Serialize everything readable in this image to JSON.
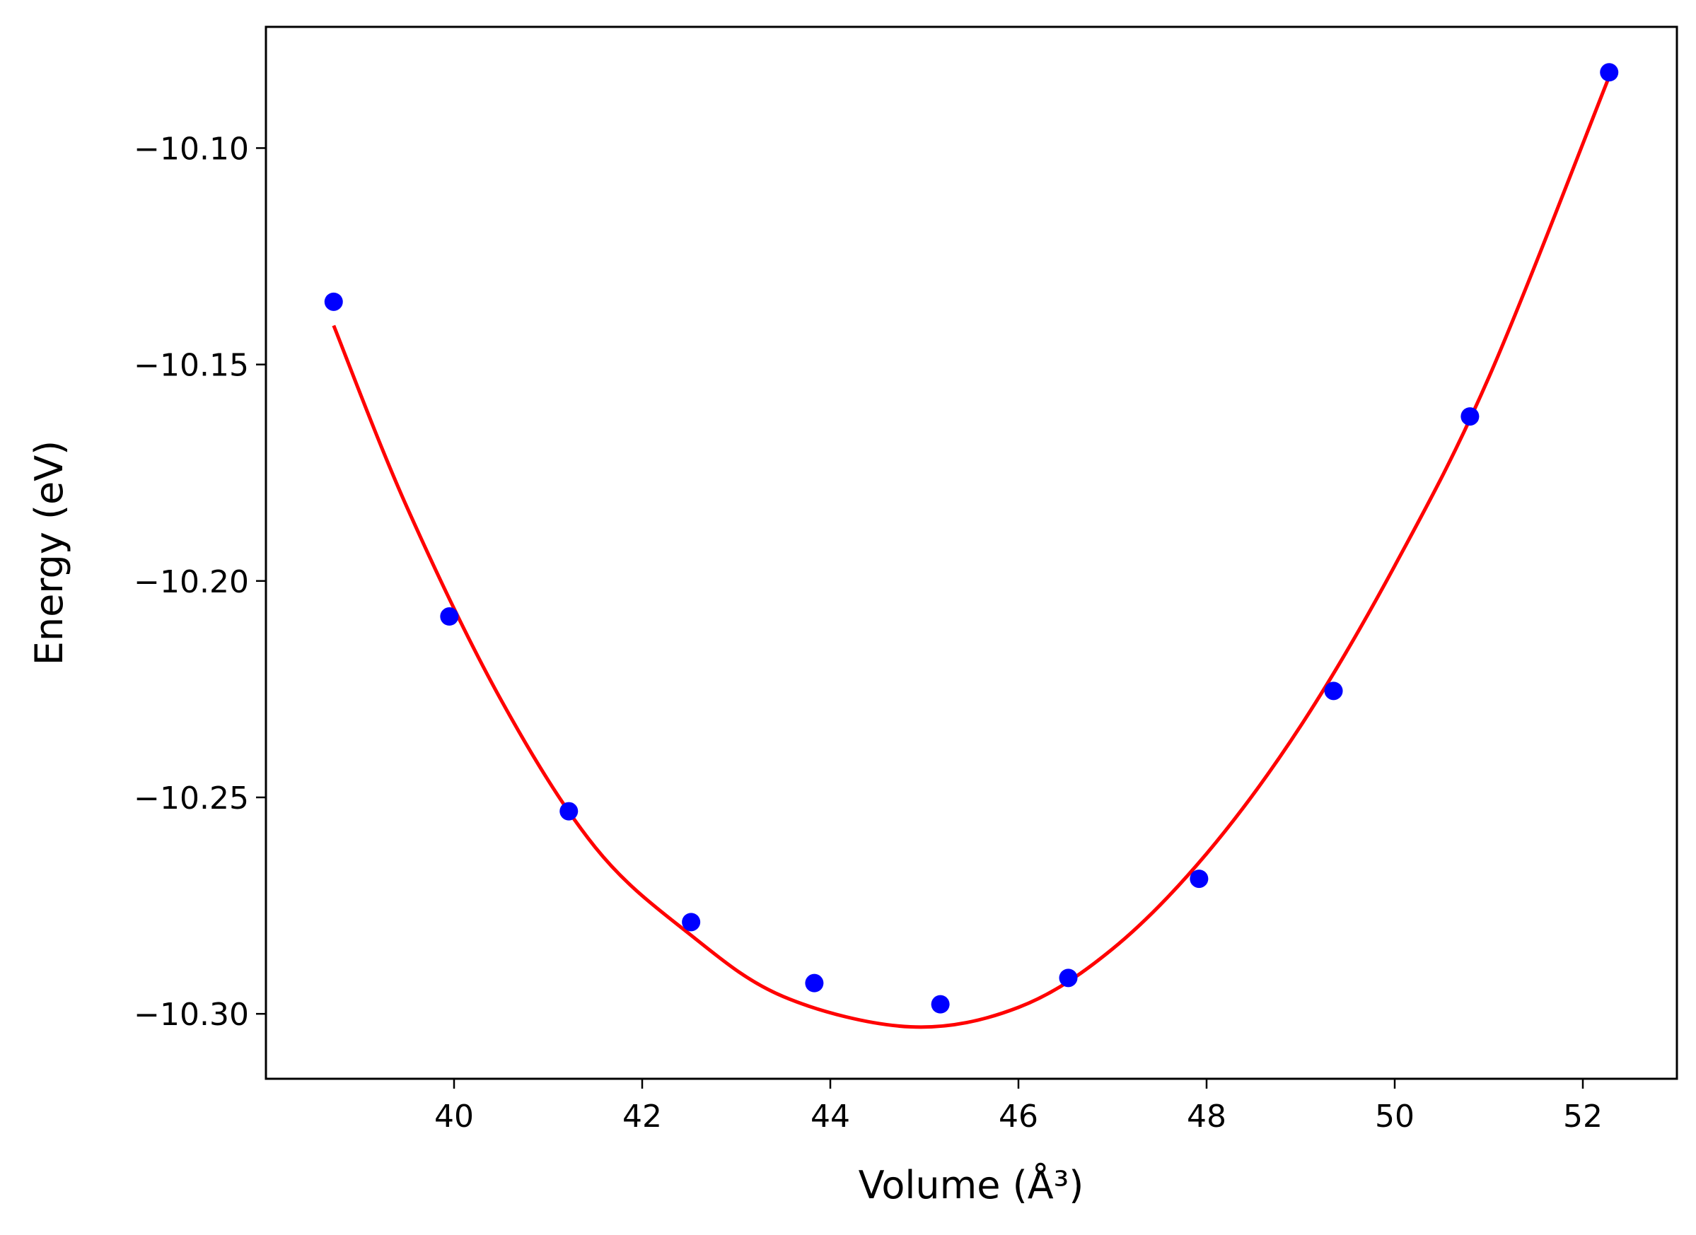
{
  "chart_data": {
    "type": "scatter",
    "title": "",
    "xlabel": "Volume",
    "xlabel_unit": "(Å³)",
    "ylabel": "Energy",
    "ylabel_unit": "(eV)",
    "xlim": [
      38.0,
      53.0
    ],
    "ylim": [
      -10.315,
      -10.072
    ],
    "x_ticks": [
      40,
      42,
      44,
      46,
      48,
      50,
      52
    ],
    "x_tick_labels": [
      "40",
      "42",
      "44",
      "46",
      "48",
      "50",
      "52"
    ],
    "y_ticks": [
      -10.3,
      -10.25,
      -10.2,
      -10.15,
      -10.1
    ],
    "y_tick_labels": [
      "−10.30",
      "−10.25",
      "−10.20",
      "−10.15",
      "−10.10"
    ],
    "grid": false,
    "legend": "none",
    "series": [
      {
        "kind": "points",
        "color": "#0000ff",
        "x": [
          38.72,
          39.95,
          41.22,
          42.52,
          43.83,
          45.17,
          46.53,
          47.92,
          49.35,
          50.8,
          52.28
        ],
        "y": [
          -10.1355,
          -10.2082,
          -10.2532,
          -10.2788,
          -10.2929,
          -10.2978,
          -10.2917,
          -10.2688,
          -10.2254,
          -10.162,
          -10.0825
        ]
      },
      {
        "kind": "fit-line",
        "color": "#ff0000",
        "x": [
          38.72,
          39.5,
          40.5,
          41.5,
          42.5,
          43.5,
          44.85,
          46.0,
          47.0,
          48.0,
          49.0,
          50.0,
          51.0,
          52.28
        ],
        "y": [
          -10.141,
          -10.183,
          -10.2275,
          -10.2615,
          -10.2815,
          -10.296,
          -10.303,
          -10.2985,
          -10.285,
          -10.263,
          -10.2335,
          -10.1965,
          -10.153,
          -10.0835
        ]
      }
    ]
  }
}
